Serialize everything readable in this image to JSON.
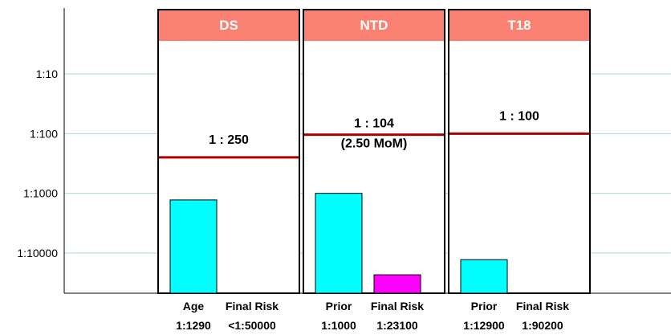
{
  "chart_data": {
    "type": "bar",
    "scale": "log",
    "y_ticks": [
      {
        "label": "1:10",
        "value": 10
      },
      {
        "label": "1:100",
        "value": 100
      },
      {
        "label": "1:1000",
        "value": 1000
      },
      {
        "label": "1:10000",
        "value": 10000
      }
    ],
    "ylim_denominator": [
      2,
      60000
    ],
    "grid": true,
    "colors": {
      "header": "#fa8072",
      "primary_bar": "#00ffff",
      "final_bar": "#ff00ff",
      "cutoff_line": "#aa0000",
      "grid": "#b0d4dc"
    },
    "panels": [
      {
        "condition": "DS",
        "cutoff_label": "1 : 250",
        "cutoff_sublabel": "",
        "cutoff_value": 250,
        "bars": [
          {
            "label": "Age",
            "value_label": "1:1290",
            "value": 1290
          },
          {
            "label": "Final Risk",
            "value_label": "<1:50000",
            "value": 50000
          }
        ]
      },
      {
        "condition": "NTD",
        "cutoff_label": "1 : 104",
        "cutoff_sublabel": "(2.50 MoM)",
        "cutoff_value": 104,
        "bars": [
          {
            "label": "Prior",
            "value_label": "1:1000",
            "value": 1000
          },
          {
            "label": "Final Risk",
            "value_label": "1:23100",
            "value": 23100
          }
        ]
      },
      {
        "condition": "T18",
        "cutoff_label": "1 : 100",
        "cutoff_sublabel": "",
        "cutoff_value": 100,
        "bars": [
          {
            "label": "Prior",
            "value_label": "1:12900",
            "value": 12900
          },
          {
            "label": "Final Risk",
            "value_label": "1:90200",
            "value": 90200
          }
        ]
      }
    ]
  }
}
